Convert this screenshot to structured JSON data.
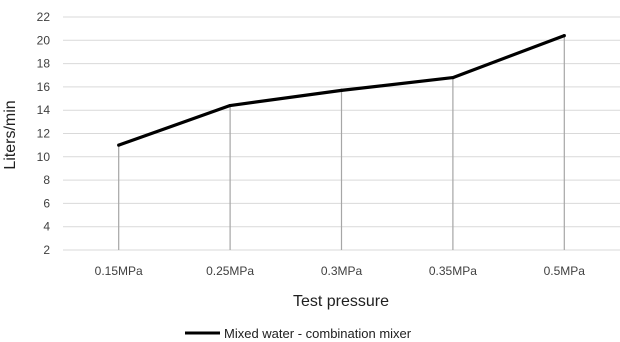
{
  "chart_data": {
    "type": "line",
    "categories": [
      "0.15MPa",
      "0.25MPa",
      "0.3MPa",
      "0.35MPa",
      "0.5MPa"
    ],
    "series": [
      {
        "name": "Mixed water - combination mixer",
        "values": [
          11.0,
          14.4,
          15.7,
          16.8,
          20.4
        ]
      }
    ],
    "xlabel": "Test pressure",
    "ylabel": "Liters/min",
    "ylim": [
      2,
      22
    ],
    "yticks": [
      2,
      4,
      6,
      8,
      10,
      12,
      14,
      16,
      18,
      20,
      22
    ],
    "grid": true,
    "drop_lines": true,
    "legend": "bottom-center",
    "colors": {
      "line": "#000000",
      "grid": "#d9d9d9",
      "drop_line": "#a6a6a6",
      "axis_text": "#404040"
    }
  }
}
